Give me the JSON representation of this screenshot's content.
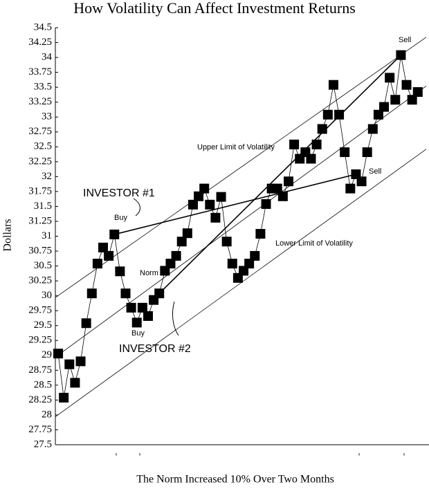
{
  "chart_data": {
    "type": "line",
    "title": "How Volatility Can Affect Investment Returns",
    "y_label": "Dollars",
    "x_label": "The Norm Increased 10% Over Two Months",
    "color": "#000000",
    "x": [
      1,
      2,
      3,
      4,
      5,
      6,
      7,
      8,
      9,
      10,
      11,
      12,
      13,
      14,
      15,
      16,
      17,
      18,
      19,
      20,
      21,
      22,
      23,
      24,
      25,
      26,
      27,
      28,
      29,
      30,
      31,
      32,
      33,
      34,
      35,
      36,
      37,
      38,
      39,
      40,
      41,
      42,
      43,
      44,
      45,
      46,
      47,
      48,
      49,
      50,
      51,
      52,
      53,
      54,
      55,
      56,
      57,
      58,
      59,
      60,
      61,
      62,
      63,
      64,
      65
    ],
    "values": [
      29.03,
      28.29,
      28.85,
      28.54,
      28.9,
      29.54,
      30.04,
      30.54,
      30.81,
      30.67,
      31.03,
      30.41,
      30.04,
      29.8,
      29.55,
      29.8,
      29.66,
      29.93,
      30.04,
      30.42,
      30.54,
      30.67,
      30.91,
      31.05,
      31.53,
      31.67,
      31.8,
      31.53,
      31.31,
      31.66,
      30.91,
      30.54,
      30.3,
      30.42,
      30.54,
      30.67,
      31.04,
      31.54,
      31.8,
      31.8,
      31.67,
      31.92,
      32.54,
      32.3,
      32.41,
      32.3,
      32.54,
      32.8,
      33.04,
      33.54,
      33.04,
      32.41,
      31.8,
      32.04,
      31.92,
      32.41,
      32.8,
      33.04,
      33.17,
      33.66,
      33.29,
      34.04,
      33.54,
      33.29,
      33.42
    ],
    "trend_lines": [
      {
        "x": [
          0.5,
          66.5
        ],
        "y": [
          29.97,
          34.34
        ]
      },
      {
        "x": [
          0.5,
          66.5
        ],
        "y": [
          28.97,
          33.52
        ]
      },
      {
        "x": [
          0.5,
          66.5
        ],
        "y": [
          27.97,
          32.46
        ]
      }
    ],
    "trade_lines": [
      {
        "x": [
          11,
          54
        ],
        "y": [
          31.03,
          32.04
        ]
      },
      {
        "x": [
          19,
          62
        ],
        "y": [
          30.04,
          34.04
        ]
      }
    ],
    "annotations": [
      "Upper Limit of Volatility",
      "Lower Limit of Volatility",
      "Norm",
      "Buy",
      "Buy",
      "Sell",
      "Sell",
      "INVESTOR #1",
      "INVESTOR #2"
    ],
    "markers": [
      "s",
      "s",
      "s",
      "s"
    ],
    "xlim": [
      0.5,
      67
    ],
    "ylim": [
      27.5,
      34.5
    ],
    "yticks": [
      27.5,
      27.75,
      28,
      28.25,
      28.5,
      28.75,
      29,
      29.25,
      29.5,
      29.75,
      30,
      30.25,
      30.5,
      30.75,
      31,
      31.25,
      31.5,
      31.75,
      32,
      32.25,
      32.5,
      32.75,
      33,
      33.25,
      33.5,
      33.75,
      34,
      34.25,
      34.5
    ]
  }
}
